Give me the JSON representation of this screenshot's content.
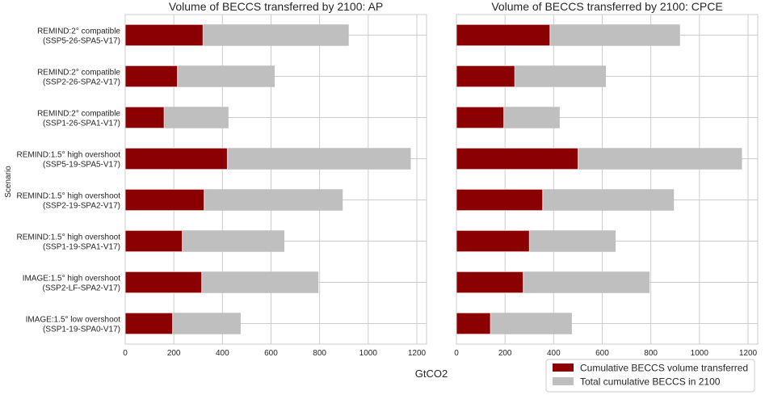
{
  "chart_data": {
    "type": "bar",
    "orientation": "horizontal",
    "stacked": "overlay",
    "categories": [
      "REMIND:2° compatible\n(SSP5-26-SPA5-V17)",
      "REMIND:2° compatible\n(SSP2-26-SPA2-V17)",
      "REMIND:2° compatible\n(SSP1-26-SPA1-V17)",
      "REMIND:1.5° high overshoot\n(SSP5-19-SPA5-V17)",
      "REMIND:1.5° high overshoot\n(SSP2-19-SPA2-V17)",
      "REMIND:1.5° high overshoot\n(SSP1-19-SPA1-V17)",
      "IMAGE:1.5° high overshoot\n(SSP2-LF-SPA2-V17)",
      "IMAGE:1.5° low overshoot\n(SSP1-19-SPA0-V17)"
    ],
    "ylabel": "Scenario",
    "xlabel": "GtCO2",
    "xlim": [
      0,
      1240
    ],
    "xticks": [
      0,
      200,
      400,
      600,
      800,
      1000,
      1200
    ],
    "grid": true,
    "legend_position": "bottom-right",
    "colors": {
      "transferred": "#8b0000",
      "total": "#bfbfbf",
      "grid": "#cccccc"
    },
    "legend": [
      {
        "key": "transferred",
        "label": "Cumulative BECCS volume transferred"
      },
      {
        "key": "total",
        "label": "Total cumulative BECCS in 2100"
      }
    ],
    "panels": [
      {
        "title": "Volume of BECCS transferred by 2100: AP",
        "series": [
          {
            "name": "Total cumulative BECCS in 2100",
            "values": [
              920,
              615,
              425,
              1175,
              895,
              655,
              795,
              475
            ]
          },
          {
            "name": "Cumulative BECCS volume transferred",
            "values": [
              320,
              215,
              160,
              420,
              325,
              235,
              315,
              195
            ]
          }
        ]
      },
      {
        "title": "Volume of BECCS transferred by 2100: CPCE",
        "series": [
          {
            "name": "Total cumulative BECCS in 2100",
            "values": [
              920,
              615,
              425,
              1175,
              895,
              655,
              795,
              475
            ]
          },
          {
            "name": "Cumulative BECCS volume transferred",
            "values": [
              385,
              240,
              195,
              500,
              355,
              300,
              275,
              140
            ]
          }
        ]
      }
    ]
  }
}
